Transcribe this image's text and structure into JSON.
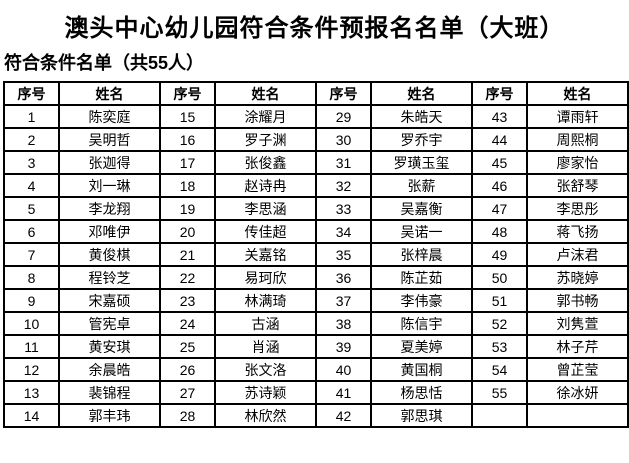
{
  "page": {
    "title": "澳头中心幼儿园符合条件预报名名单（大班）",
    "subtitle": "符合条件名单（共55人）",
    "total_count": "55",
    "text_color": "#000000",
    "background_color": "#ffffff"
  },
  "table": {
    "headers": [
      "序号",
      "姓名",
      "序号",
      "姓名",
      "序号",
      "姓名",
      "序号",
      "姓名"
    ],
    "rows": [
      [
        "1",
        "陈奕庭",
        "15",
        "涂耀月",
        "29",
        "朱皓天",
        "43",
        "谭雨轩"
      ],
      [
        "2",
        "吴明哲",
        "16",
        "罗子渊",
        "30",
        "罗乔宇",
        "44",
        "周熙桐"
      ],
      [
        "3",
        "张迦得",
        "17",
        "张俊鑫",
        "31",
        "罗璜玉玺",
        "45",
        "廖家怡"
      ],
      [
        "4",
        "刘一琳",
        "18",
        "赵诗冉",
        "32",
        "张薪",
        "46",
        "张舒琴"
      ],
      [
        "5",
        "李龙翔",
        "19",
        "李思涵",
        "33",
        "吴嘉衡",
        "47",
        "李思彤"
      ],
      [
        "6",
        "邓唯伊",
        "20",
        "传佳超",
        "34",
        "吴诺一",
        "48",
        "蒋飞扬"
      ],
      [
        "7",
        "黄俊棋",
        "21",
        "关嘉铭",
        "35",
        "张梓晨",
        "49",
        "卢沫君"
      ],
      [
        "8",
        "程铃芝",
        "22",
        "易珂欣",
        "36",
        "陈芷茹",
        "50",
        "苏晓婷"
      ],
      [
        "9",
        "宋嘉硕",
        "23",
        "林满琦",
        "37",
        "李伟豪",
        "51",
        "郭书畅"
      ],
      [
        "10",
        "管宪卓",
        "24",
        "古涵",
        "38",
        "陈信宇",
        "52",
        "刘隽萱"
      ],
      [
        "11",
        "黄安琪",
        "25",
        "肖涵",
        "39",
        "夏美婷",
        "53",
        "林子芹"
      ],
      [
        "12",
        "余晨皓",
        "26",
        "张文洛",
        "40",
        "黄国桐",
        "54",
        "曾芷莹"
      ],
      [
        "13",
        "裴锦程",
        "27",
        "苏诗颖",
        "41",
        "杨思恬",
        "55",
        "徐冰妍"
      ],
      [
        "14",
        "郭丰玮",
        "28",
        "林欣然",
        "42",
        "郭思琪",
        "",
        ""
      ]
    ]
  }
}
